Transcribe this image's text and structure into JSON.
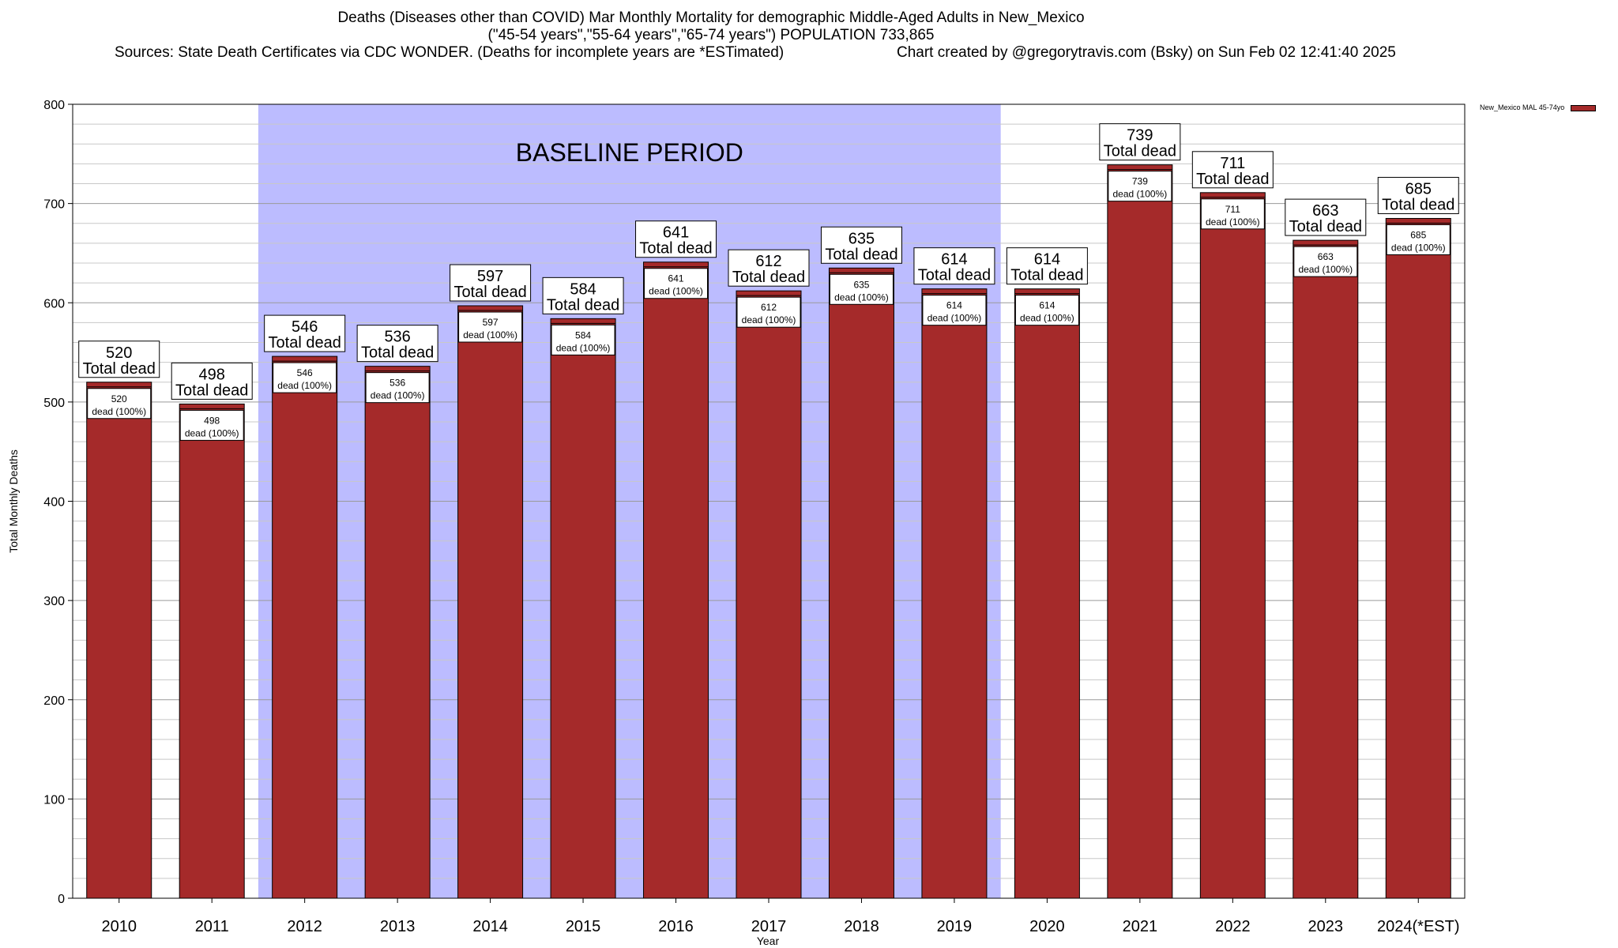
{
  "header": {
    "title": "Deaths (Diseases other than COVID) Mar Monthly Mortality for demographic Middle-Aged Adults in New_Mexico",
    "subtitle": "(\"45-54 years\",\"55-64 years\",\"65-74 years\") POPULATION 733,865",
    "sources": "Sources: State Death Certificates via CDC WONDER. (Deaths for incomplete years are *ESTimated)",
    "credit": "Chart created by @gregorytravis.com (Bsky) on Sun Feb 02 12:41:40 2025"
  },
  "chart_data": {
    "type": "bar",
    "xlabel": "Year",
    "ylabel": "Total Monthly Deaths",
    "ylim": [
      0,
      800
    ],
    "yticks": [
      0,
      100,
      200,
      300,
      400,
      500,
      600,
      700,
      800
    ],
    "grid": true,
    "legend_position": "top-right",
    "categories": [
      "2010",
      "2011",
      "2012",
      "2013",
      "2014",
      "2015",
      "2016",
      "2017",
      "2018",
      "2019",
      "2020",
      "2021",
      "2022",
      "2023",
      "2024(*EST)"
    ],
    "series": [
      {
        "name": "New_Mexico MAL 45-74yo",
        "color": "#a52a2a",
        "values": [
          520,
          498,
          546,
          536,
          597,
          584,
          641,
          612,
          635,
          614,
          614,
          739,
          711,
          663,
          685
        ]
      }
    ],
    "total_label_suffix": "Total dead",
    "inner_label_suffix": "dead (100%)",
    "baseline_annotation": {
      "text": "BASELINE PERIOD",
      "start_category": "2012",
      "end_category": "2019",
      "color": "#bcbcff"
    }
  }
}
